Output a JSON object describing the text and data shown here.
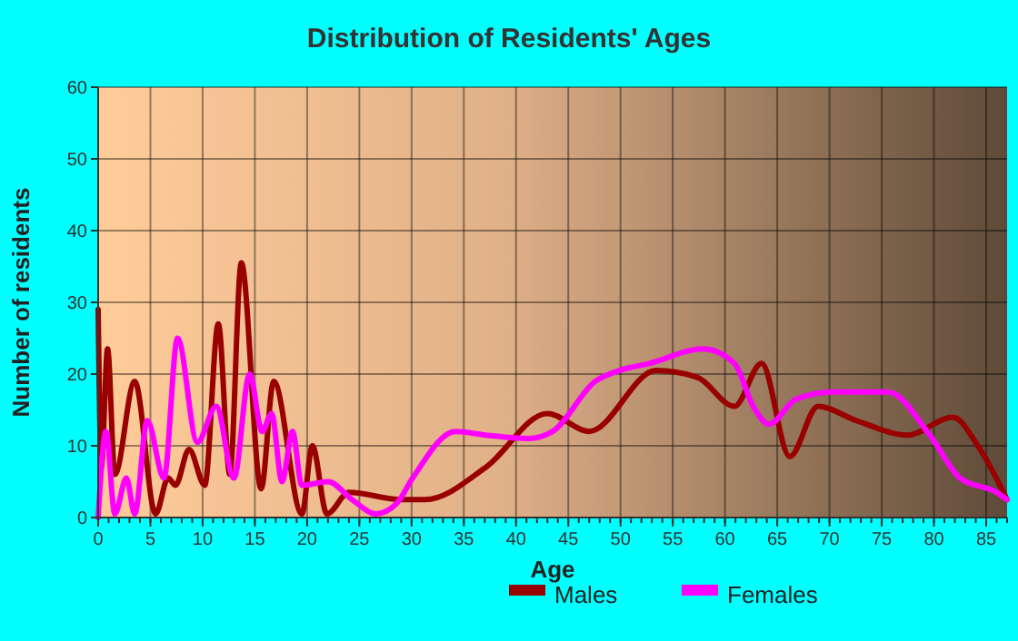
{
  "chart_data": {
    "type": "line",
    "title": "Distribution of Residents' Ages",
    "xlabel": "Age",
    "ylabel": "Number of residents",
    "xlim": [
      0,
      87
    ],
    "xticks": [
      0,
      5,
      10,
      15,
      20,
      25,
      30,
      35,
      40,
      45,
      50,
      55,
      60,
      65,
      70,
      75,
      80,
      85
    ],
    "ylim": [
      0,
      60
    ],
    "yticks": [
      0,
      10,
      20,
      30,
      40,
      50,
      60
    ],
    "grid": true,
    "legend": "bottom",
    "marker": "none",
    "line_style": "solid",
    "series": [
      {
        "name": "Males",
        "color": "#990000",
        "x": [
          0,
          0.3,
          0.9,
          1.6,
          3.5,
          5.5,
          6.7,
          7.4,
          8.7,
          10.2,
          11.5,
          12.6,
          13.7,
          15.6,
          16.8,
          19.5,
          20.5,
          21.9,
          24,
          29,
          31.3,
          37.1,
          43,
          47,
          53.4,
          57.4,
          60.9,
          63.5,
          66.2,
          68.9,
          72.6,
          77.5,
          81.8,
          84.2,
          87
        ],
        "values": [
          29,
          7,
          23.5,
          6,
          19,
          0.5,
          5.5,
          4.5,
          9.5,
          4.5,
          27,
          6,
          35.5,
          4,
          19,
          0.5,
          10,
          0.5,
          3.5,
          2.5,
          2.5,
          7,
          14.5,
          12,
          20.5,
          19.5,
          15.5,
          21.5,
          8.5,
          15.5,
          13.5,
          11.5,
          14,
          10,
          2.5
        ]
      },
      {
        "name": "Females",
        "color": "#ff00ff",
        "x": [
          0,
          0.75,
          1.6,
          2.7,
          3.5,
          4.7,
          6.3,
          7.6,
          9.5,
          11.3,
          13,
          14.5,
          15.7,
          16.6,
          17.6,
          18.6,
          19.5,
          22,
          24.3,
          26.6,
          28.6,
          30.1,
          34.2,
          37.1,
          41.2,
          43.5,
          47.6,
          49.9,
          52.8,
          57.9,
          60.9,
          62.7,
          64.2,
          66.8,
          70.3,
          75.6,
          79.6,
          82.5,
          86,
          87
        ],
        "values": [
          0,
          12,
          0.5,
          5.5,
          0.5,
          13.5,
          5.5,
          25,
          10.5,
          15.5,
          5.5,
          20,
          12,
          14.5,
          5,
          12,
          4.5,
          5,
          2.5,
          0.5,
          2,
          5.5,
          12,
          11.5,
          11,
          12,
          19,
          20.5,
          21.5,
          23.5,
          21.5,
          15.5,
          13,
          16.5,
          17.5,
          17.5,
          11.5,
          5.5,
          3.5,
          2.5
        ]
      }
    ]
  }
}
